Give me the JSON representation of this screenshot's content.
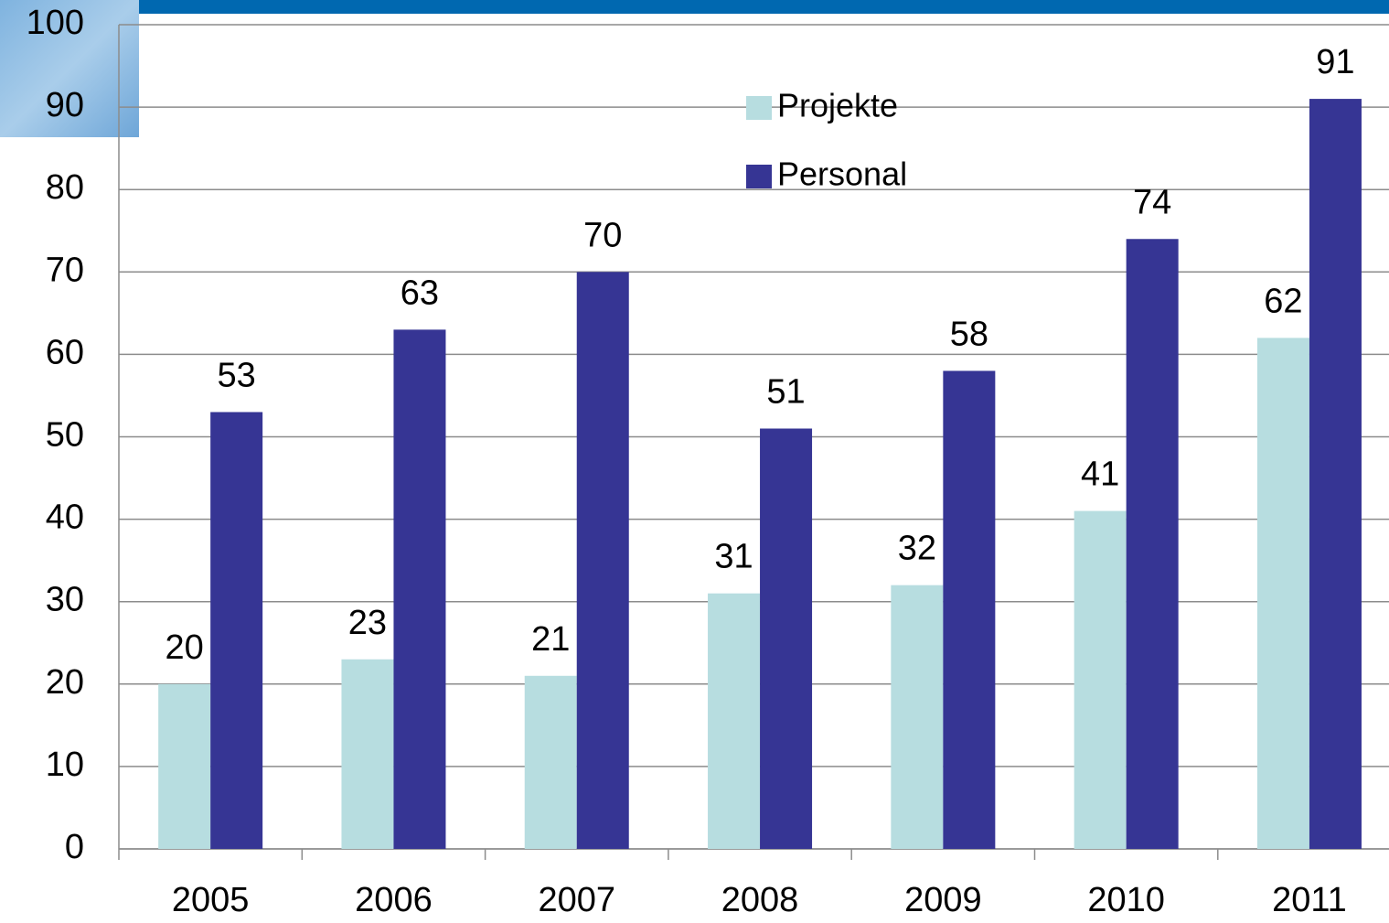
{
  "chart_data": {
    "type": "bar",
    "categories": [
      "2005",
      "2006",
      "2007",
      "2008",
      "2009",
      "2010",
      "2011"
    ],
    "series": [
      {
        "name": "Projekte",
        "color": "#b7dde0",
        "values": [
          20,
          23,
          21,
          31,
          32,
          41,
          62
        ]
      },
      {
        "name": "Personal",
        "color": "#363594",
        "values": [
          53,
          63,
          70,
          51,
          58,
          74,
          91
        ]
      }
    ],
    "ylim": [
      0,
      100
    ],
    "yticks": [
      0,
      10,
      20,
      30,
      40,
      50,
      60,
      70,
      80,
      90,
      100
    ],
    "grid": true
  }
}
